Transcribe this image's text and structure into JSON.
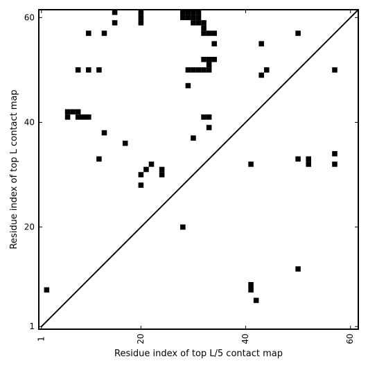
{
  "chart_data": {
    "type": "heatmap",
    "xlabel": "Residue index of top L/5 contact map",
    "ylabel": "Residue index of top L contact map",
    "xlim": [
      0.5,
      61.5
    ],
    "ylim": [
      0.5,
      61.5
    ],
    "xticks": [
      {
        "value": 1,
        "label": "1"
      },
      {
        "value": 20,
        "label": "20"
      },
      {
        "value": 40,
        "label": "40"
      },
      {
        "value": 60,
        "label": "60"
      }
    ],
    "yticks": [
      {
        "value": 1,
        "label": "1"
      },
      {
        "value": 20,
        "label": "20"
      },
      {
        "value": 40,
        "label": "40"
      },
      {
        "value": 60,
        "label": "60"
      }
    ],
    "diagonal": true,
    "cell_color": "#000000",
    "cells": [
      [
        2,
        8
      ],
      [
        28,
        20
      ],
      [
        41,
        9
      ],
      [
        41,
        8
      ],
      [
        42,
        6
      ],
      [
        50,
        12
      ],
      [
        41,
        32
      ],
      [
        50,
        33
      ],
      [
        52,
        33
      ],
      [
        52,
        32
      ],
      [
        57,
        34
      ],
      [
        57,
        32
      ],
      [
        15,
        61
      ],
      [
        15,
        59
      ],
      [
        20,
        61
      ],
      [
        20,
        60
      ],
      [
        20,
        59
      ],
      [
        28,
        61
      ],
      [
        28,
        60
      ],
      [
        29,
        61
      ],
      [
        29,
        60
      ],
      [
        30,
        61
      ],
      [
        30,
        60
      ],
      [
        31,
        61
      ],
      [
        31,
        60
      ],
      [
        31,
        59
      ],
      [
        30,
        59
      ],
      [
        32,
        59
      ],
      [
        32,
        58
      ],
      [
        32,
        57
      ],
      [
        33,
        57
      ],
      [
        34,
        57
      ],
      [
        34,
        55
      ],
      [
        10,
        57
      ],
      [
        13,
        57
      ],
      [
        43,
        55
      ],
      [
        50,
        57
      ],
      [
        8,
        50
      ],
      [
        10,
        50
      ],
      [
        12,
        50
      ],
      [
        29,
        50
      ],
      [
        30,
        50
      ],
      [
        31,
        50
      ],
      [
        32,
        50
      ],
      [
        33,
        50
      ],
      [
        33,
        51
      ],
      [
        32,
        52
      ],
      [
        33,
        52
      ],
      [
        34,
        52
      ],
      [
        43,
        49
      ],
      [
        44,
        50
      ],
      [
        57,
        50
      ],
      [
        29,
        47
      ],
      [
        6,
        42
      ],
      [
        7,
        42
      ],
      [
        8,
        42
      ],
      [
        6,
        41
      ],
      [
        8,
        41
      ],
      [
        9,
        41
      ],
      [
        10,
        41
      ],
      [
        32,
        41
      ],
      [
        33,
        41
      ],
      [
        33,
        39
      ],
      [
        13,
        38
      ],
      [
        17,
        36
      ],
      [
        30,
        37
      ],
      [
        12,
        33
      ],
      [
        22,
        32
      ],
      [
        21,
        31
      ],
      [
        24,
        31
      ],
      [
        20,
        30
      ],
      [
        24,
        30
      ],
      [
        20,
        28
      ]
    ]
  }
}
